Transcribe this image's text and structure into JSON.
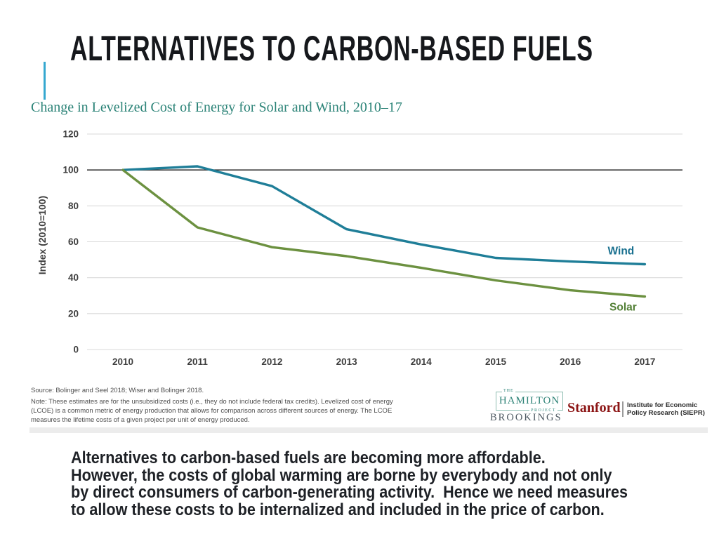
{
  "slide": {
    "title": "ALTERNATIVES TO CARBON-BASED FUELS",
    "accent_line_color": "#35A8D0",
    "body_lines": [
      "Alternatives to carbon-based fuels are becoming more affordable.",
      "However, the costs of global warming are borne by everybody and not only",
      "by direct consumers of carbon-generating activity.  Hence we need measures",
      "to allow these costs to be internalized and included in the price of carbon."
    ]
  },
  "chart_data": {
    "type": "line",
    "title": "Change in Levelized Cost of Energy for Solar and Wind, 2010–17",
    "title_color": "#2B8377",
    "x": [
      2010,
      2011,
      2012,
      2013,
      2014,
      2015,
      2016,
      2017
    ],
    "series": [
      {
        "name": "Wind",
        "color": "#1F7E98",
        "label_color": "#19708F",
        "values": [
          100,
          102,
          91,
          67,
          58.5,
          51,
          49,
          47.5
        ]
      },
      {
        "name": "Solar",
        "color": "#6C9140",
        "label_color": "#527F35",
        "values": [
          100,
          68,
          57,
          52,
          45.5,
          38.5,
          33,
          29.5
        ]
      }
    ],
    "ylabel": "Index (2010=100)",
    "ylim": [
      0,
      120
    ],
    "yticks": [
      0,
      20,
      40,
      60,
      80,
      100,
      120
    ],
    "reference_line": 100,
    "grid": true,
    "gridline_color": "#D9D9D9",
    "reference_line_color": "#3B3B3B",
    "tick_label_color": "#3D3D3D",
    "legend_position": "line-end labels"
  },
  "chart_notes": {
    "source": "Source: Bolinger and Seel 2018; Wiser and Bolinger 2018.",
    "note_lines": [
      "Note: These estimates are for the unsubsidized costs (i.e., they do not include federal tax credits). Levelized cost of energy",
      "(LCOE) is a common metric of energy production that allows for comparison across different sources of energy. The LCOE",
      "measures the lifetime costs of a given project per unit of energy produced."
    ]
  },
  "logos": {
    "hamilton": {
      "the": "THE",
      "name": "HAMILTON",
      "project": "PROJECT",
      "org": "BROOKINGS",
      "color": "#2E8377",
      "org_color": "#4F5A63"
    },
    "stanford": {
      "name": "Stanford",
      "color": "#8C1515",
      "institute_line1": "Institute for Economic",
      "institute_line2": "Policy Research (SIEPR)"
    }
  }
}
